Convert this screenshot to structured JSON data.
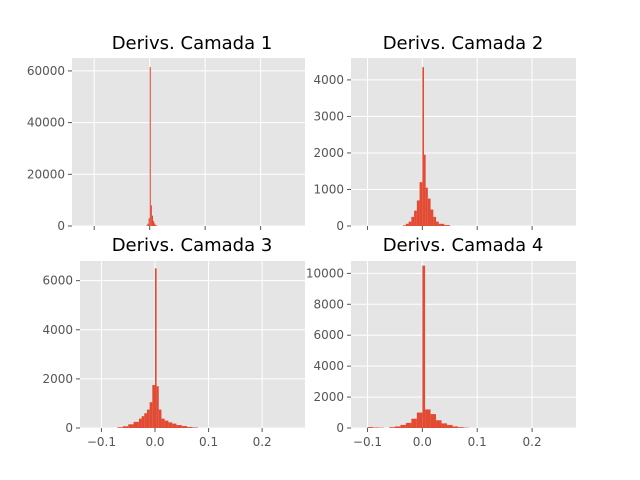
{
  "chart_data": [
    {
      "type": "bar",
      "title": "Derivs. Camada 1",
      "xlabel": "",
      "ylabel": "",
      "xlim": [
        -0.14,
        0.28
      ],
      "ylim": [
        0,
        65000
      ],
      "xticks": [
        -0.1,
        0.0,
        0.1,
        0.2
      ],
      "xtick_labels": [],
      "yticks": [
        0,
        20000,
        40000,
        60000
      ],
      "ytick_labels": [
        "0",
        "20000",
        "40000",
        "60000"
      ],
      "grid": true,
      "bins": [
        {
          "x0": -0.006,
          "x1": -0.004,
          "value": 200
        },
        {
          "x0": -0.004,
          "x1": -0.002,
          "value": 900
        },
        {
          "x0": -0.002,
          "x1": 0.0,
          "value": 3000
        },
        {
          "x0": 0.0,
          "x1": 0.002,
          "value": 61500
        },
        {
          "x0": 0.002,
          "x1": 0.004,
          "value": 8000
        },
        {
          "x0": 0.004,
          "x1": 0.006,
          "value": 4000
        },
        {
          "x0": 0.006,
          "x1": 0.008,
          "value": 2000
        },
        {
          "x0": 0.008,
          "x1": 0.01,
          "value": 1000
        },
        {
          "x0": 0.01,
          "x1": 0.012,
          "value": 400
        },
        {
          "x0": 0.012,
          "x1": 0.014,
          "value": 150
        }
      ]
    },
    {
      "type": "bar",
      "title": "Derivs. Camada 2",
      "xlabel": "",
      "ylabel": "",
      "xlim": [
        -0.13,
        0.28
      ],
      "ylim": [
        0,
        4600
      ],
      "xticks": [
        -0.1,
        0.0,
        0.1,
        0.2
      ],
      "xtick_labels": [],
      "yticks": [
        0,
        1000,
        2000,
        3000,
        4000
      ],
      "ytick_labels": [
        "0",
        "1000",
        "2000",
        "3000",
        "4000"
      ],
      "grid": true,
      "bins": [
        {
          "x0": -0.035,
          "x1": -0.03,
          "value": 20
        },
        {
          "x0": -0.03,
          "x1": -0.025,
          "value": 60
        },
        {
          "x0": -0.025,
          "x1": -0.02,
          "value": 120
        },
        {
          "x0": -0.02,
          "x1": -0.015,
          "value": 250
        },
        {
          "x0": -0.015,
          "x1": -0.01,
          "value": 420
        },
        {
          "x0": -0.01,
          "x1": -0.005,
          "value": 700
        },
        {
          "x0": -0.005,
          "x1": 0.0,
          "value": 1200
        },
        {
          "x0": 0.0,
          "x1": 0.003,
          "value": 4350
        },
        {
          "x0": 0.003,
          "x1": 0.006,
          "value": 1950
        },
        {
          "x0": 0.006,
          "x1": 0.01,
          "value": 1050
        },
        {
          "x0": 0.01,
          "x1": 0.015,
          "value": 750
        },
        {
          "x0": 0.015,
          "x1": 0.02,
          "value": 450
        },
        {
          "x0": 0.02,
          "x1": 0.025,
          "value": 250
        },
        {
          "x0": 0.025,
          "x1": 0.03,
          "value": 120
        },
        {
          "x0": 0.03,
          "x1": 0.04,
          "value": 60
        },
        {
          "x0": 0.04,
          "x1": 0.05,
          "value": 25
        }
      ]
    },
    {
      "type": "bar",
      "title": "Derivs. Camada 3",
      "xlabel": "",
      "ylabel": "",
      "xlim": [
        -0.14,
        0.28
      ],
      "ylim": [
        0,
        6800
      ],
      "xticks": [
        -0.1,
        0.0,
        0.1,
        0.2
      ],
      "xtick_labels": [
        "−0.1",
        "0.0",
        "0.1",
        "0.2"
      ],
      "yticks": [
        0,
        2000,
        4000,
        6000
      ],
      "ytick_labels": [
        "0",
        "2000",
        "4000",
        "6000"
      ],
      "grid": true,
      "bins": [
        {
          "x0": -0.07,
          "x1": -0.06,
          "value": 30
        },
        {
          "x0": -0.06,
          "x1": -0.05,
          "value": 70
        },
        {
          "x0": -0.05,
          "x1": -0.04,
          "value": 150
        },
        {
          "x0": -0.04,
          "x1": -0.03,
          "value": 250
        },
        {
          "x0": -0.03,
          "x1": -0.025,
          "value": 380
        },
        {
          "x0": -0.025,
          "x1": -0.02,
          "value": 480
        },
        {
          "x0": -0.02,
          "x1": -0.015,
          "value": 600
        },
        {
          "x0": -0.015,
          "x1": -0.01,
          "value": 750
        },
        {
          "x0": -0.01,
          "x1": -0.005,
          "value": 1050
        },
        {
          "x0": -0.005,
          "x1": 0.0,
          "value": 1750
        },
        {
          "x0": 0.0,
          "x1": 0.003,
          "value": 6500
        },
        {
          "x0": 0.003,
          "x1": 0.007,
          "value": 1700
        },
        {
          "x0": 0.007,
          "x1": 0.012,
          "value": 750
        },
        {
          "x0": 0.012,
          "x1": 0.018,
          "value": 380
        },
        {
          "x0": 0.018,
          "x1": 0.025,
          "value": 300
        },
        {
          "x0": 0.025,
          "x1": 0.032,
          "value": 230
        },
        {
          "x0": 0.032,
          "x1": 0.04,
          "value": 180
        },
        {
          "x0": 0.04,
          "x1": 0.05,
          "value": 120
        },
        {
          "x0": 0.05,
          "x1": 0.06,
          "value": 80
        },
        {
          "x0": 0.06,
          "x1": 0.07,
          "value": 40
        },
        {
          "x0": 0.07,
          "x1": 0.08,
          "value": 20
        }
      ]
    },
    {
      "type": "bar",
      "title": "Derivs. Camada 4",
      "xlabel": "",
      "ylabel": "",
      "xlim": [
        -0.13,
        0.28
      ],
      "ylim": [
        0,
        10800
      ],
      "xticks": [
        -0.1,
        0.0,
        0.1,
        0.2
      ],
      "xtick_labels": [
        "−0.1",
        "0.0",
        "0.1",
        "0.2"
      ],
      "yticks": [
        0,
        2000,
        4000,
        6000,
        8000,
        10000
      ],
      "ytick_labels": [
        "0",
        "2000",
        "4000",
        "6000",
        "8000",
        "10000"
      ],
      "grid": true,
      "bins": [
        {
          "x0": -0.1,
          "x1": -0.09,
          "value": 60
        },
        {
          "x0": -0.09,
          "x1": -0.08,
          "value": 30
        },
        {
          "x0": -0.08,
          "x1": -0.07,
          "value": 20
        },
        {
          "x0": -0.06,
          "x1": -0.05,
          "value": 50
        },
        {
          "x0": -0.05,
          "x1": -0.04,
          "value": 100
        },
        {
          "x0": -0.04,
          "x1": -0.03,
          "value": 200
        },
        {
          "x0": -0.03,
          "x1": -0.02,
          "value": 330
        },
        {
          "x0": -0.02,
          "x1": -0.01,
          "value": 600
        },
        {
          "x0": -0.01,
          "x1": 0.0,
          "value": 1000
        },
        {
          "x0": 0.0,
          "x1": 0.005,
          "value": 10500
        },
        {
          "x0": 0.005,
          "x1": 0.015,
          "value": 1200
        },
        {
          "x0": 0.015,
          "x1": 0.025,
          "value": 900
        },
        {
          "x0": 0.025,
          "x1": 0.035,
          "value": 500
        },
        {
          "x0": 0.035,
          "x1": 0.045,
          "value": 300
        },
        {
          "x0": 0.045,
          "x1": 0.055,
          "value": 200
        },
        {
          "x0": 0.055,
          "x1": 0.065,
          "value": 100
        },
        {
          "x0": 0.065,
          "x1": 0.075,
          "value": 50
        },
        {
          "x0": 0.075,
          "x1": 0.085,
          "value": 20
        }
      ]
    }
  ],
  "colors": {
    "figure_background": "#ffffff",
    "axes_background": "#e5e5e5",
    "grid": "#ffffff",
    "bar": "#e24a33",
    "tick_label": "#555555",
    "title": "#000000"
  }
}
